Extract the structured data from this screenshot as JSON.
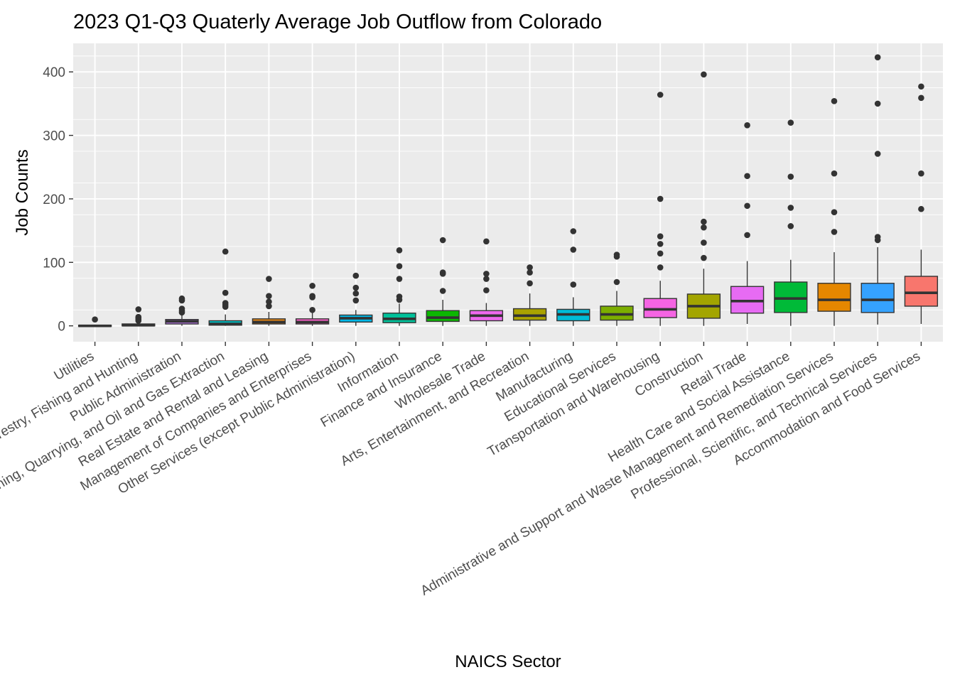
{
  "chart_data": {
    "type": "boxplot",
    "title": "2023 Q1-Q3 Quaterly Average Job Outflow from Colorado",
    "xlabel": "NAICS Sector",
    "ylabel": "Job Counts",
    "ylim": [
      -25,
      445
    ],
    "yticks": [
      0,
      100,
      200,
      300,
      400
    ],
    "grid": true,
    "legend": "none",
    "categories": [
      {
        "name": "Utilities",
        "q1": -1,
        "median": 0,
        "q3": 1,
        "lower": -1,
        "upper": 2,
        "outliers": [
          10
        ],
        "color": "#00A9FF"
      },
      {
        "name": "Agriculture, Forestry, Fishing and Hunting",
        "q1": 0,
        "median": 1,
        "q3": 3,
        "lower": 0,
        "upper": 6,
        "outliers": [
          8,
          10,
          12,
          14,
          26
        ],
        "color": "#8494FF"
      },
      {
        "name": "Public Administration",
        "q1": 3,
        "median": 7,
        "q3": 10,
        "lower": 0,
        "upper": 17,
        "outliers": [
          21,
          24,
          27,
          40,
          43
        ],
        "color": "#C77CFF"
      },
      {
        "name": "Mining, Quarrying, and Oil and Gas Extraction",
        "q1": 1,
        "median": 3,
        "q3": 8,
        "lower": 0,
        "upper": 18,
        "outliers": [
          30,
          33,
          36,
          52,
          117
        ],
        "color": "#00BFC4"
      },
      {
        "name": "Real Estate and Rental and Leasing",
        "q1": 3,
        "median": 6,
        "q3": 11,
        "lower": 0,
        "upper": 22,
        "outliers": [
          31,
          38,
          47,
          74
        ],
        "color": "#E68613"
      },
      {
        "name": "Management of Companies and Enterprises",
        "q1": 3,
        "median": 6,
        "q3": 11,
        "lower": 0,
        "upper": 22,
        "outliers": [
          25,
          45,
          47,
          63
        ],
        "color": "#FF61CC"
      },
      {
        "name": "Other Services (except Public Administration)",
        "q1": 6,
        "median": 12,
        "q3": 17,
        "lower": 0,
        "upper": 25,
        "outliers": [
          40,
          51,
          60,
          79
        ],
        "color": "#00B8E7"
      },
      {
        "name": "Information",
        "q1": 5,
        "median": 11,
        "q3": 20,
        "lower": 0,
        "upper": 35,
        "outliers": [
          41,
          46,
          74,
          94,
          119
        ],
        "color": "#00C19A"
      },
      {
        "name": "Finance and Insurance",
        "q1": 7,
        "median": 13,
        "q3": 24,
        "lower": 0,
        "upper": 41,
        "outliers": [
          55,
          82,
          84,
          135
        ],
        "color": "#0CB702"
      },
      {
        "name": "Wholesale Trade",
        "q1": 8,
        "median": 16,
        "q3": 24,
        "lower": 0,
        "upper": 36,
        "outliers": [
          56,
          74,
          82,
          133
        ],
        "color": "#ED68ED"
      },
      {
        "name": "Arts, Entertainment, and Recreation",
        "q1": 9,
        "median": 16,
        "q3": 27,
        "lower": 0,
        "upper": 51,
        "outliers": [
          67,
          84,
          92
        ],
        "color": "#ABA300"
      },
      {
        "name": "Manufacturing",
        "q1": 8,
        "median": 18,
        "q3": 26,
        "lower": 0,
        "upper": 45,
        "outliers": [
          65,
          120,
          149
        ],
        "color": "#00BCD8"
      },
      {
        "name": "Educational Services",
        "q1": 9,
        "median": 18,
        "q3": 31,
        "lower": 0,
        "upper": 55,
        "outliers": [
          69,
          109,
          112
        ],
        "color": "#7CAE00"
      },
      {
        "name": "Transportation and Warehousing",
        "q1": 13,
        "median": 26,
        "q3": 43,
        "lower": 0,
        "upper": 71,
        "outliers": [
          92,
          114,
          129,
          141,
          200,
          364
        ],
        "color": "#F564E3"
      },
      {
        "name": "Construction",
        "q1": 12,
        "median": 31,
        "q3": 50,
        "lower": 0,
        "upper": 90,
        "outliers": [
          107,
          131,
          155,
          164,
          396
        ],
        "color": "#A3A500"
      },
      {
        "name": "Retail Trade",
        "q1": 20,
        "median": 39,
        "q3": 62,
        "lower": 3,
        "upper": 102,
        "outliers": [
          143,
          189,
          236,
          316
        ],
        "color": "#E76BF3"
      },
      {
        "name": "Health Care and Social Assistance",
        "q1": 21,
        "median": 43,
        "q3": 69,
        "lower": 0,
        "upper": 104,
        "outliers": [
          157,
          186,
          235,
          320
        ],
        "color": "#00BA38"
      },
      {
        "name": "Administrative and Support and Waste Management and Remediation Services",
        "q1": 23,
        "median": 41,
        "q3": 67,
        "lower": 0,
        "upper": 116,
        "outliers": [
          148,
          179,
          240,
          354
        ],
        "color": "#E58700"
      },
      {
        "name": "Professional, Scientific, and Technical Services",
        "q1": 21,
        "median": 41,
        "q3": 67,
        "lower": 2,
        "upper": 124,
        "outliers": [
          135,
          140,
          271,
          350,
          423
        ],
        "color": "#35A2FF"
      },
      {
        "name": "Accommodation and Food Services",
        "q1": 31,
        "median": 52,
        "q3": 78,
        "lower": 3,
        "upper": 120,
        "outliers": [
          184,
          240,
          359,
          377
        ],
        "color": "#F8766D"
      }
    ]
  }
}
